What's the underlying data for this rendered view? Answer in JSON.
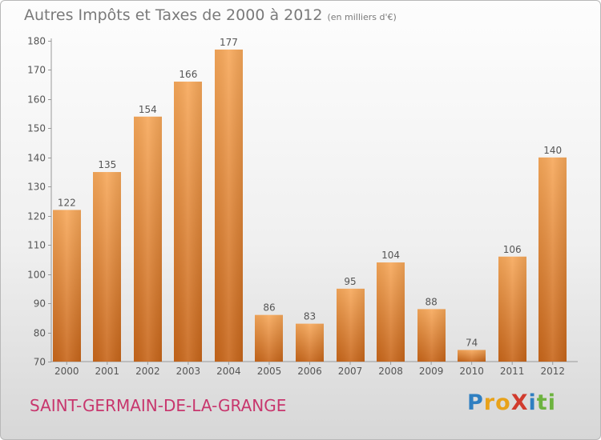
{
  "header": {
    "title": "Autres Impôts et Taxes de 2000 à 2012",
    "unit": "(en milliers d'€)"
  },
  "footer": {
    "place": "SAINT-GERMAIN-DE-LA-GRANGE",
    "brand_letters": [
      {
        "ch": "P",
        "color": "#2f7fc1"
      },
      {
        "ch": "r",
        "color": "#e8a21a"
      },
      {
        "ch": "o",
        "color": "#e8a21a"
      },
      {
        "ch": "X",
        "color": "#d13b2e"
      },
      {
        "ch": "i",
        "color": "#2f7fc1"
      },
      {
        "ch": "t",
        "color": "#6db33f"
      },
      {
        "ch": "i",
        "color": "#6db33f"
      }
    ]
  },
  "chart_data": {
    "type": "bar",
    "title": "Autres Impôts et Taxes de 2000 à 2012",
    "subtitle": "(en milliers d'€)",
    "xlabel": "",
    "ylabel": "",
    "categories": [
      "2000",
      "2001",
      "2002",
      "2003",
      "2004",
      "2005",
      "2006",
      "2007",
      "2008",
      "2009",
      "2010",
      "2011",
      "2012"
    ],
    "values": [
      122,
      135,
      154,
      166,
      177,
      86,
      83,
      95,
      104,
      88,
      74,
      106,
      140
    ],
    "ylim": [
      70,
      180
    ],
    "yticks": [
      70,
      80,
      90,
      100,
      110,
      120,
      130,
      140,
      150,
      160,
      170,
      180
    ],
    "grid": false,
    "bar_color_top": "#f7a85a",
    "bar_color_bottom": "#c8661a"
  }
}
